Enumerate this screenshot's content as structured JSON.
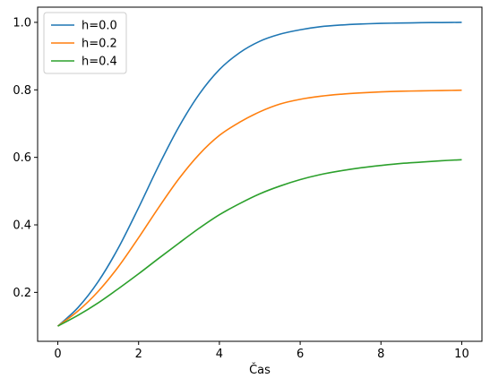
{
  "chart_data": {
    "type": "line",
    "title": "",
    "xlabel": "Čas",
    "ylabel": "",
    "xlim": [
      -0.5,
      10.5
    ],
    "ylim": [
      0.055,
      1.045
    ],
    "xticks": [
      0,
      2,
      4,
      6,
      8,
      10
    ],
    "xtick_labels": [
      "0",
      "2",
      "4",
      "6",
      "8",
      "10"
    ],
    "yticks": [
      0.2,
      0.4,
      0.6,
      0.8,
      1.0
    ],
    "ytick_labels": [
      "0.2",
      "0.4",
      "0.6",
      "0.8",
      "1.0"
    ],
    "grid": false,
    "legend_position": "top-left",
    "x": [
      0,
      0.5,
      1,
      1.5,
      2,
      2.5,
      3,
      3.5,
      4,
      4.5,
      5,
      5.5,
      6,
      6.5,
      7,
      7.5,
      8,
      8.5,
      9,
      9.5,
      10
    ],
    "series": [
      {
        "name": "h=0.0",
        "color": "#1f77b4",
        "values": [
          0.1,
          0.155,
          0.232,
          0.332,
          0.451,
          0.576,
          0.691,
          0.787,
          0.86,
          0.91,
          0.944,
          0.965,
          0.978,
          0.987,
          0.992,
          0.995,
          0.997,
          0.998,
          0.999,
          0.9995,
          1.0
        ]
      },
      {
        "name": "h=0.2",
        "color": "#ff7f0e",
        "values": [
          0.1,
          0.145,
          0.203,
          0.276,
          0.362,
          0.452,
          0.537,
          0.609,
          0.665,
          0.704,
          0.735,
          0.758,
          0.772,
          0.781,
          0.787,
          0.791,
          0.794,
          0.796,
          0.797,
          0.798,
          0.799
        ]
      },
      {
        "name": "h=0.4",
        "color": "#2ca02c",
        "values": [
          0.1,
          0.132,
          0.169,
          0.211,
          0.255,
          0.301,
          0.346,
          0.39,
          0.43,
          0.463,
          0.492,
          0.515,
          0.534,
          0.549,
          0.56,
          0.569,
          0.576,
          0.582,
          0.586,
          0.59,
          0.593
        ]
      }
    ]
  }
}
